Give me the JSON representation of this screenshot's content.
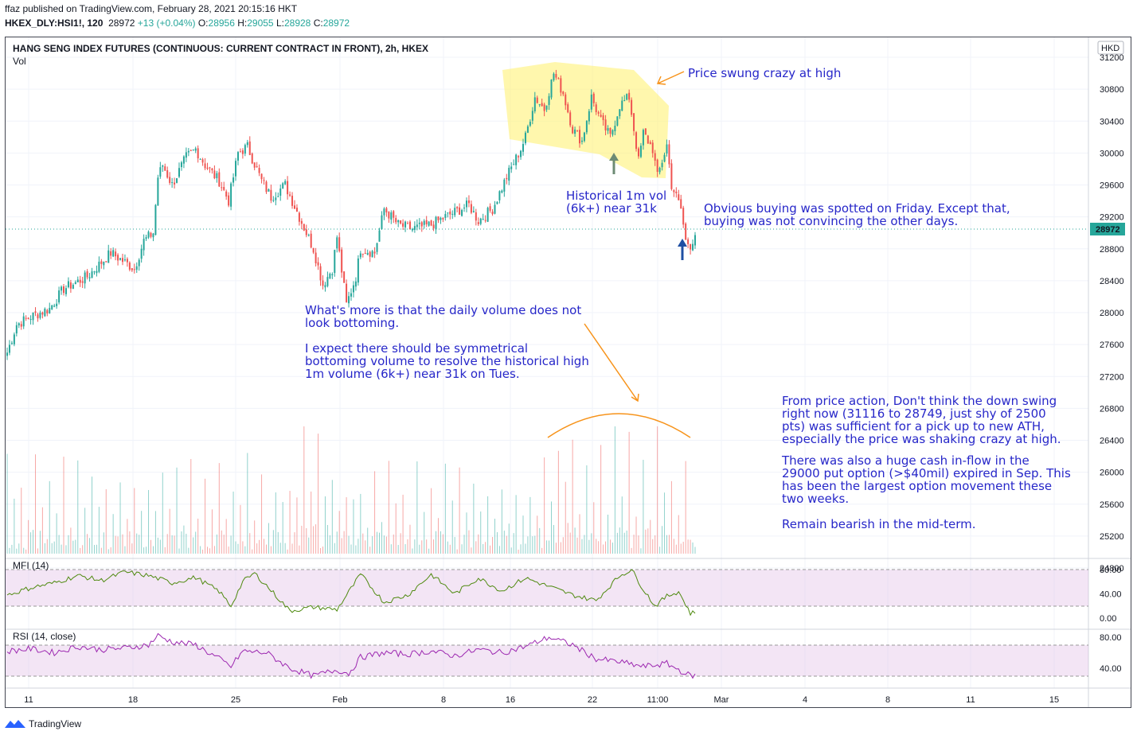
{
  "header": {
    "published_line": "ffaz published on TradingView.com, February 28, 2021 20:15:16 HKT",
    "symbol": "HKEX_DLY:HSI1!, 120",
    "last": "28972",
    "change": "+13 (+0.04%)",
    "o_label": "O:",
    "o": "28956",
    "h_label": "H:",
    "h": "29055",
    "l_label": "L:",
    "l": "28928",
    "c_label": "C:",
    "c": "28972"
  },
  "chart_title": "HANG SENG INDEX FUTURES (CONTINUOUS: CURRENT CONTRACT IN FRONT), 2h, HKEX",
  "vol_label": "Vol",
  "currency_badge": "HKD",
  "price_badge": "28972",
  "annotations": {
    "swing": "Price swung crazy at high",
    "hist1": "Historical 1m vol",
    "hist2": "(6k+) near 31k",
    "friday1": "Obvious buying was spotted on Friday. Except that,",
    "friday2": "buying was not convincing the other days.",
    "daily1": "What's more is that the daily volume does not",
    "daily2": "look bottoming.",
    "expect1": "I expect there should be symmetrical",
    "expect2": "bottoming volume to resolve the historical high",
    "expect3": "1m volume (6k+) near 31k on Tues.",
    "pa1": "From price action, Don't think the down swing",
    "pa2": "right now (31116 to 28749, just shy of 2500",
    "pa3": "pts) was sufficient for a pick up to new ATH,",
    "pa4": "especially the price was shaking crazy at high.",
    "cash1": "There was also a huge cash in-flow in the",
    "cash2": "29000 put option (>$40mil) expired in Sep. This",
    "cash3": "has been the largest option movement these",
    "cash4": "two weeks.",
    "bear": "Remain bearish in the mid-term."
  },
  "mfi_label": "MFI (14)",
  "rsi_label": "RSI (14, close)",
  "footer_brand": "TradingView",
  "colors": {
    "up": "#26a69a",
    "down": "#ef5350",
    "annotation": "#2727c9",
    "arrow": "#f7931a",
    "highlight": "#fff176",
    "mfi": "#4f8a10",
    "rsi": "#9c27b0"
  },
  "chart_data": [
    {
      "type": "candlestick",
      "title": "HANG SENG INDEX FUTURES (CONTINUOUS: CURRENT CONTRACT IN FRONT), 2h, HKEX",
      "ylim": [
        24700,
        31400
      ],
      "y_ticks": [
        31200,
        30800,
        30400,
        30000,
        29600,
        29200,
        28800,
        28400,
        28000,
        27600,
        27200,
        26800,
        26400,
        26000,
        25600,
        25200,
        24800
      ],
      "x_ticks": [
        "11",
        "18",
        "25",
        "Feb",
        "8",
        "16",
        "22",
        "11:00",
        "Mar",
        "4",
        "8",
        "11",
        "15"
      ],
      "close_anchors": [
        [
          0,
          27500
        ],
        [
          4,
          27850
        ],
        [
          10,
          27950
        ],
        [
          18,
          28050
        ],
        [
          24,
          28300
        ],
        [
          34,
          28450
        ],
        [
          44,
          28750
        ],
        [
          54,
          28550
        ],
        [
          58,
          28900
        ],
        [
          62,
          29000
        ],
        [
          64,
          29700
        ],
        [
          66,
          29850
        ],
        [
          70,
          29600
        ],
        [
          76,
          29950
        ],
        [
          80,
          30050
        ],
        [
          84,
          29850
        ],
        [
          90,
          29650
        ],
        [
          94,
          29400
        ],
        [
          98,
          30000
        ],
        [
          102,
          30080
        ],
        [
          108,
          29650
        ],
        [
          112,
          29450
        ],
        [
          118,
          29600
        ],
        [
          124,
          29200
        ],
        [
          130,
          28800
        ],
        [
          134,
          28350
        ],
        [
          138,
          28550
        ],
        [
          140,
          28950
        ],
        [
          144,
          28100
        ],
        [
          148,
          28450
        ],
        [
          150,
          28800
        ],
        [
          156,
          28750
        ],
        [
          160,
          29300
        ],
        [
          166,
          29100
        ],
        [
          172,
          29050
        ],
        [
          180,
          29100
        ],
        [
          186,
          29200
        ],
        [
          196,
          29350
        ],
        [
          200,
          29150
        ],
        [
          206,
          29300
        ],
        [
          212,
          29700
        ],
        [
          218,
          30050
        ],
        [
          220,
          30200
        ],
        [
          224,
          30700
        ],
        [
          228,
          30550
        ],
        [
          232,
          31000
        ],
        [
          236,
          30750
        ],
        [
          240,
          30300
        ],
        [
          244,
          30150
        ],
        [
          248,
          30700
        ],
        [
          252,
          30400
        ],
        [
          256,
          30200
        ],
        [
          260,
          30600
        ],
        [
          264,
          30700
        ],
        [
          268,
          29900
        ],
        [
          270,
          30250
        ],
        [
          274,
          30050
        ],
        [
          276,
          29700
        ],
        [
          280,
          30100
        ],
        [
          282,
          29600
        ],
        [
          286,
          29300
        ],
        [
          288,
          28900
        ],
        [
          290,
          28850
        ],
        [
          292,
          28972
        ]
      ],
      "last": 28972
    },
    {
      "type": "bar",
      "title": "Vol",
      "description": "volume bars below price, tallest spikes near Jan 29 and Feb 17-25"
    },
    {
      "type": "line",
      "title": "MFI (14)",
      "y_ticks": [
        80,
        40,
        0
      ],
      "ylim": [
        0,
        100
      ],
      "band": [
        20,
        80
      ],
      "x_anchors": [
        0,
        10,
        20,
        30,
        40,
        50,
        60,
        70,
        80,
        90,
        95,
        100,
        105,
        110,
        120,
        130,
        140,
        150,
        160,
        170,
        180,
        190,
        200,
        210,
        220,
        230,
        240,
        250,
        260,
        265,
        270,
        275,
        280,
        285,
        290,
        292
      ],
      "values": [
        38,
        50,
        58,
        70,
        62,
        76,
        70,
        58,
        67,
        44,
        20,
        60,
        74,
        54,
        12,
        18,
        14,
        72,
        26,
        38,
        72,
        40,
        66,
        45,
        66,
        52,
        38,
        29,
        70,
        80,
        48,
        20,
        36,
        44,
        8,
        9
      ]
    },
    {
      "type": "line",
      "title": "RSI (14, close)",
      "y_ticks": [
        80,
        40
      ],
      "ylim": [
        20,
        100
      ],
      "band": [
        30,
        70
      ],
      "x_anchors": [
        0,
        10,
        20,
        30,
        40,
        50,
        60,
        64,
        70,
        80,
        90,
        95,
        100,
        110,
        120,
        130,
        140,
        145,
        150,
        160,
        170,
        180,
        190,
        200,
        210,
        220,
        230,
        240,
        250,
        260,
        270,
        280,
        290,
        292
      ],
      "values": [
        62,
        65,
        60,
        68,
        64,
        66,
        70,
        82,
        74,
        70,
        52,
        42,
        62,
        60,
        40,
        30,
        38,
        33,
        54,
        60,
        58,
        62,
        56,
        64,
        60,
        68,
        80,
        70,
        52,
        48,
        42,
        46,
        30,
        31
      ]
    }
  ]
}
